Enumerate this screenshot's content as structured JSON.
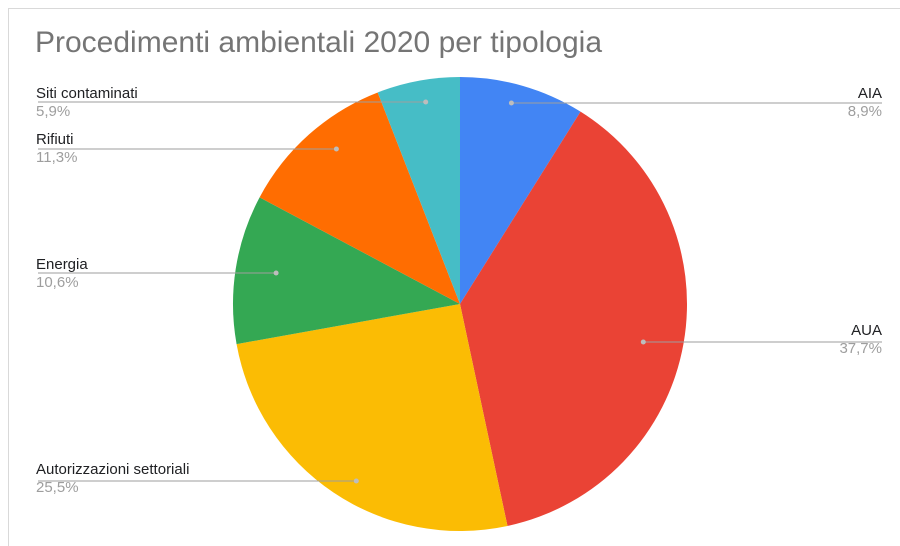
{
  "chart_data": {
    "type": "pie",
    "title": "Procedimenti ambientali 2020 per tipologia",
    "slices": [
      {
        "name": "AIA",
        "value": 8.9,
        "label": "8,9%",
        "color": "#4285f4"
      },
      {
        "name": "AUA",
        "value": 37.7,
        "label": "37,7%",
        "color": "#ea4335"
      },
      {
        "name": "Autorizzazioni settoriali",
        "value": 25.5,
        "label": "25,5%",
        "color": "#fbbc04"
      },
      {
        "name": "Energia",
        "value": 10.6,
        "label": "10,6%",
        "color": "#34a853"
      },
      {
        "name": "Rifiuti",
        "value": 11.3,
        "label": "11,3%",
        "color": "#ff6d01"
      },
      {
        "name": "Siti contaminati",
        "value": 5.9,
        "label": "5,9%",
        "color": "#46bdc6"
      }
    ]
  }
}
